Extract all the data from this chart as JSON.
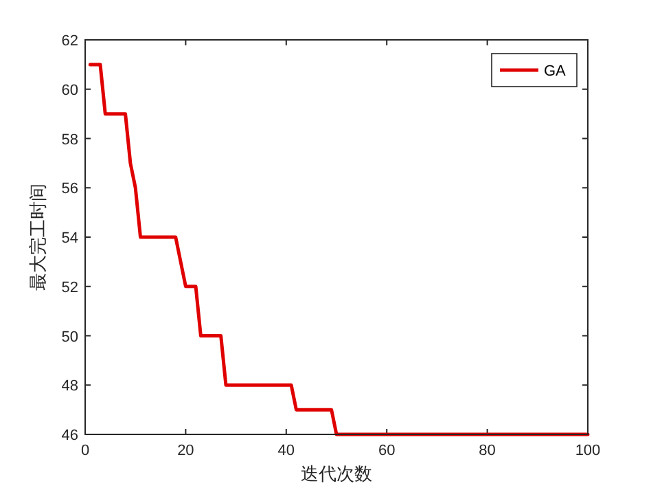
{
  "chart_data": {
    "type": "line",
    "xlabel": "迭代次数",
    "ylabel": "最大完工时间",
    "series": [
      {
        "name": "GA",
        "color": "#e00000",
        "x": [
          1,
          3,
          4,
          8,
          9,
          10,
          11,
          18,
          19,
          20,
          22,
          23,
          27,
          28,
          41,
          42,
          49,
          50,
          100
        ],
        "values": [
          61,
          61,
          59,
          59,
          57,
          56,
          54,
          54,
          53,
          52,
          52,
          50,
          50,
          48,
          48,
          47,
          47,
          46,
          46
        ]
      }
    ],
    "xlim": [
      0,
      100
    ],
    "xticks": [
      0,
      20,
      40,
      60,
      80,
      100
    ],
    "ylim": [
      46,
      62
    ],
    "yticks": [
      46,
      48,
      50,
      52,
      54,
      56,
      58,
      60,
      62
    ],
    "grid": false,
    "legend": "top right",
    "marker": "none",
    "line_style": "solid"
  }
}
